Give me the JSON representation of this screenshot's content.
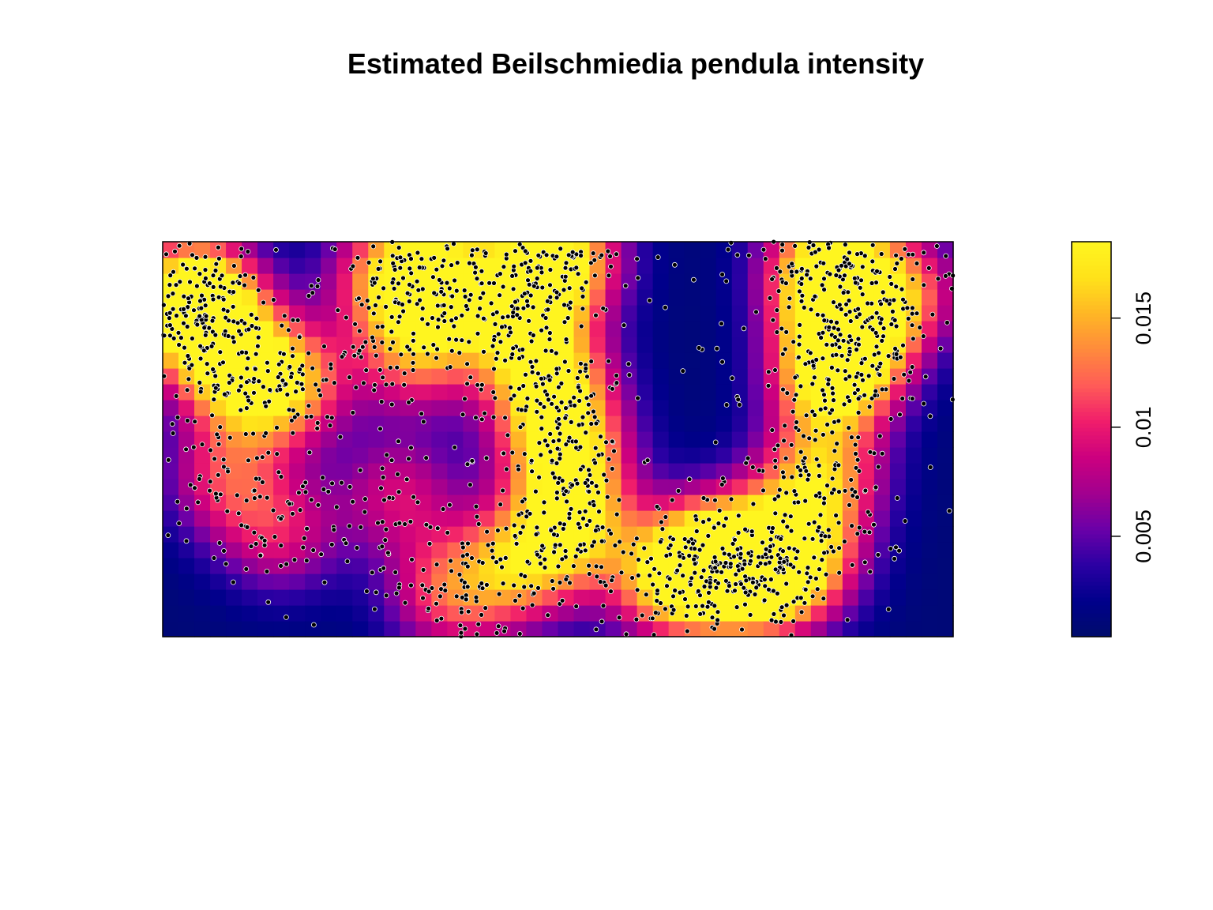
{
  "chart_data": {
    "type": "heatmap",
    "title": "Estimated Beilschmiedia pendula intensity",
    "xlabel": "",
    "ylabel": "",
    "xlim": [
      0,
      1000
    ],
    "ylim": [
      0,
      500
    ],
    "grid": false,
    "colorbar": {
      "position": "right",
      "range": [
        0.0004,
        0.0185
      ],
      "ticks": [
        0.005,
        0.01,
        0.015
      ],
      "tick_labels": [
        "0.005",
        "0.01",
        "0.015"
      ],
      "palette": [
        "#000d6b",
        "#00008b",
        "#2b00a3",
        "#6a00a8",
        "#a2008f",
        "#cc007f",
        "#f01d6b",
        "#ff5b58",
        "#ff8a3c",
        "#ffb625",
        "#ffe21a",
        "#fff51f"
      ]
    },
    "grid_cols": 50,
    "grid_rows": 25,
    "hotspots": [
      {
        "x": 40,
        "y": 430,
        "value": 0.017
      },
      {
        "x": 50,
        "y": 400,
        "value": 0.012
      },
      {
        "x": 100,
        "y": 330,
        "value": 0.013
      },
      {
        "x": 160,
        "y": 320,
        "value": 0.012
      },
      {
        "x": 80,
        "y": 200,
        "value": 0.009
      },
      {
        "x": 150,
        "y": 130,
        "value": 0.008
      },
      {
        "x": 290,
        "y": 460,
        "value": 0.013
      },
      {
        "x": 360,
        "y": 450,
        "value": 0.014
      },
      {
        "x": 320,
        "y": 360,
        "value": 0.011
      },
      {
        "x": 450,
        "y": 410,
        "value": 0.013
      },
      {
        "x": 500,
        "y": 480,
        "value": 0.018
      },
      {
        "x": 490,
        "y": 320,
        "value": 0.016
      },
      {
        "x": 510,
        "y": 230,
        "value": 0.015
      },
      {
        "x": 520,
        "y": 140,
        "value": 0.013
      },
      {
        "x": 450,
        "y": 90,
        "value": 0.012
      },
      {
        "x": 360,
        "y": 55,
        "value": 0.01
      },
      {
        "x": 640,
        "y": 70,
        "value": 0.013
      },
      {
        "x": 700,
        "y": 100,
        "value": 0.018
      },
      {
        "x": 760,
        "y": 80,
        "value": 0.016
      },
      {
        "x": 840,
        "y": 470,
        "value": 0.017
      },
      {
        "x": 850,
        "y": 330,
        "value": 0.018
      },
      {
        "x": 870,
        "y": 400,
        "value": 0.016
      },
      {
        "x": 830,
        "y": 200,
        "value": 0.014
      },
      {
        "x": 810,
        "y": 100,
        "value": 0.011
      },
      {
        "x": 940,
        "y": 440,
        "value": 0.009
      },
      {
        "x": 300,
        "y": 180,
        "value": 0.008
      }
    ]
  }
}
